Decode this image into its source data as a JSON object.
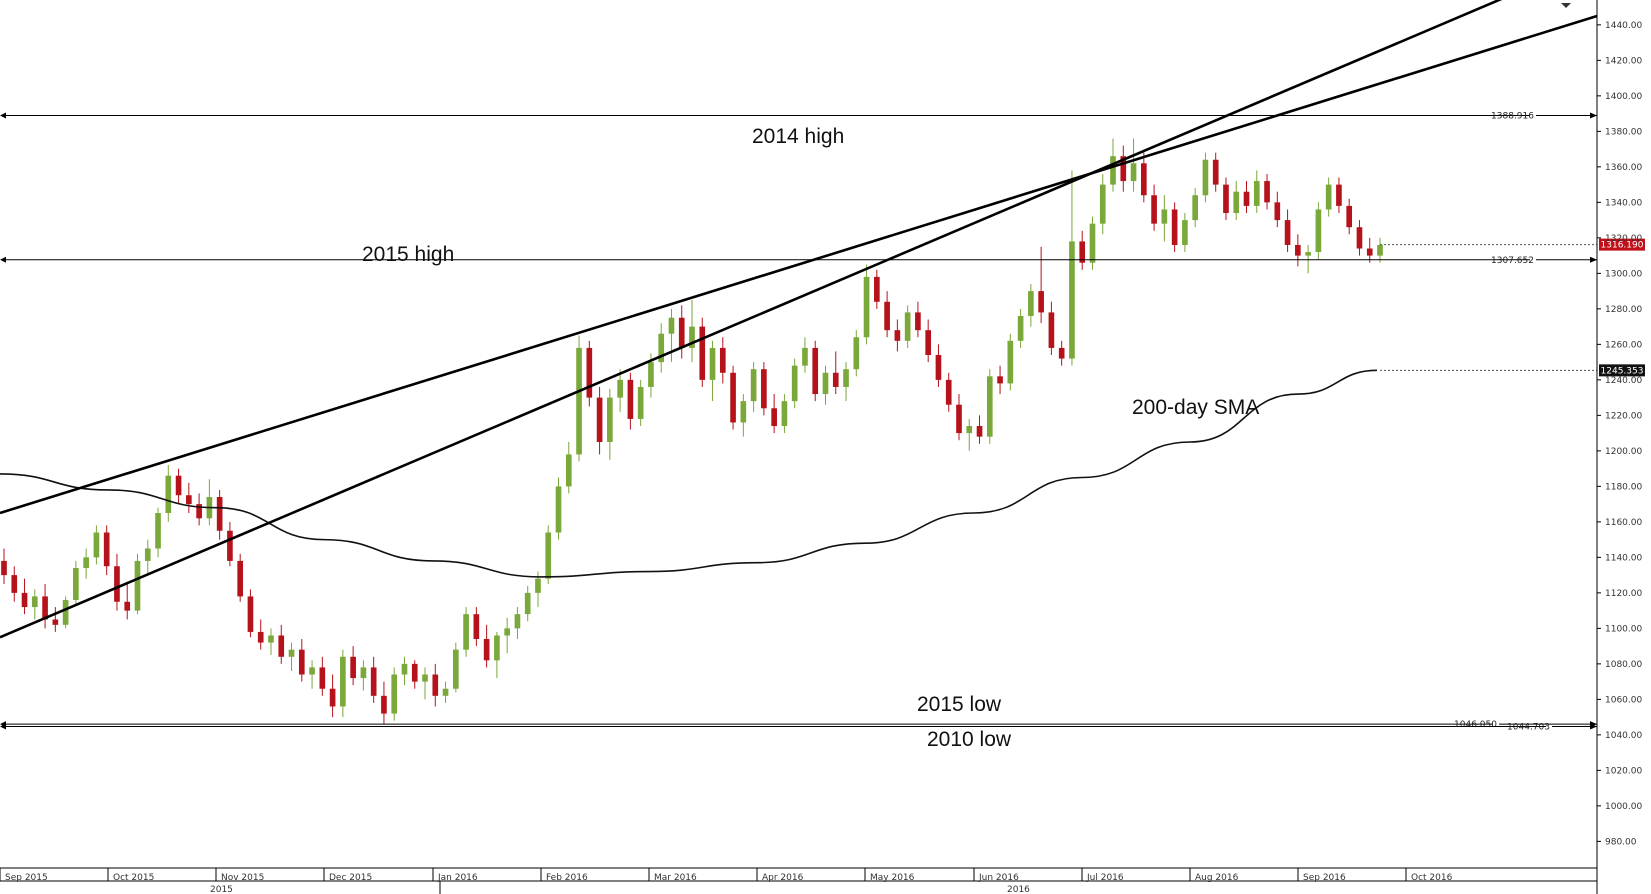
{
  "chart_data": {
    "type": "candlestick",
    "y_axis": {
      "min": 965,
      "max": 1454,
      "ticks": [
        980,
        1000,
        1020,
        1040,
        1060,
        1080,
        1100,
        1120,
        1140,
        1160,
        1180,
        1200,
        1220,
        1240,
        1260,
        1280,
        1300,
        1320,
        1340,
        1360,
        1380,
        1400,
        1420,
        1440
      ],
      "tick_labels": [
        "980.00",
        "1000.00",
        "1020.00",
        "1040.00",
        "1060.00",
        "1080.00",
        "1100.00",
        "1120.00",
        "1140.00",
        "1160.00",
        "1180.00",
        "1200.00",
        "1220.00",
        "1240.00",
        "1260.00",
        "1280.00",
        "1300.00",
        "1320.00",
        "1340.00",
        "1360.00",
        "1380.00",
        "1400.00",
        "1420.00",
        "1440.00"
      ],
      "side": "right"
    },
    "x_axis": {
      "months": [
        "Sep 2015",
        "Oct 2015",
        "Nov 2015",
        "Dec 2015",
        "Jan 2016",
        "Feb 2016",
        "Mar 2016",
        "Apr 2016",
        "May 2016",
        "Jun 2016",
        "Jul 2016",
        "Aug 2016",
        "Sep 2016",
        "Oct 2016"
      ],
      "years": [
        "2015",
        "2016"
      ],
      "grid": false
    },
    "horizontal_levels": [
      {
        "value": 1388.916,
        "label": "1388.916",
        "annotation": "2014 high"
      },
      {
        "value": 1307.652,
        "label": "1307.652",
        "annotation": "2015 high"
      },
      {
        "value": 1046.05,
        "label": "1046.050",
        "annotation": "2015 low"
      },
      {
        "value": 1044.703,
        "label": "1044.703",
        "annotation": "2010 low"
      }
    ],
    "price_tags": [
      {
        "value": 1316.19,
        "label": "1316.190",
        "color": "#c0101a"
      },
      {
        "value": 1245.353,
        "label": "1245.353",
        "color": "#111111"
      }
    ],
    "moving_average": {
      "annotation": "200-day SMA",
      "points": [
        [
          "Sep 2015",
          1187
        ],
        [
          "Oct 2015",
          1178
        ],
        [
          "Nov 2015",
          1168
        ],
        [
          "Dec 2015",
          1150
        ],
        [
          "Jan 2016",
          1138
        ],
        [
          "Feb 2016",
          1129
        ],
        [
          "Mar 2016",
          1132
        ],
        [
          "Apr 2016",
          1137
        ],
        [
          "May 2016",
          1148
        ],
        [
          "Jun 2016",
          1165
        ],
        [
          "Jul 2016",
          1185
        ],
        [
          "Aug 2016",
          1205
        ],
        [
          "Sep 2016",
          1232
        ],
        [
          "Sep 2016 end",
          1245.353
        ]
      ]
    },
    "trendlines": [
      {
        "from": [
          "Sep 2015",
          1165
        ],
        "to": [
          "Oct 2016 end",
          1445
        ]
      },
      {
        "from": [
          "Sep 2015",
          1095
        ],
        "to": [
          "Aug 2016",
          1380
        ]
      }
    ],
    "candles": [
      {
        "o": 1138,
        "h": 1145,
        "l": 1125,
        "c": 1130
      },
      {
        "o": 1130,
        "h": 1135,
        "l": 1115,
        "c": 1120
      },
      {
        "o": 1120,
        "h": 1128,
        "l": 1108,
        "c": 1112
      },
      {
        "o": 1112,
        "h": 1122,
        "l": 1105,
        "c": 1118
      },
      {
        "o": 1118,
        "h": 1125,
        "l": 1100,
        "c": 1105
      },
      {
        "o": 1105,
        "h": 1112,
        "l": 1098,
        "c": 1102
      },
      {
        "o": 1102,
        "h": 1118,
        "l": 1100,
        "c": 1116
      },
      {
        "o": 1116,
        "h": 1138,
        "l": 1114,
        "c": 1134
      },
      {
        "o": 1134,
        "h": 1145,
        "l": 1128,
        "c": 1140
      },
      {
        "o": 1140,
        "h": 1158,
        "l": 1136,
        "c": 1154
      },
      {
        "o": 1154,
        "h": 1158,
        "l": 1130,
        "c": 1135
      },
      {
        "o": 1135,
        "h": 1142,
        "l": 1110,
        "c": 1115
      },
      {
        "o": 1115,
        "h": 1125,
        "l": 1105,
        "c": 1110
      },
      {
        "o": 1110,
        "h": 1142,
        "l": 1108,
        "c": 1138
      },
      {
        "o": 1138,
        "h": 1150,
        "l": 1130,
        "c": 1145
      },
      {
        "o": 1145,
        "h": 1168,
        "l": 1140,
        "c": 1165
      },
      {
        "o": 1165,
        "h": 1192,
        "l": 1160,
        "c": 1186
      },
      {
        "o": 1186,
        "h": 1190,
        "l": 1170,
        "c": 1175
      },
      {
        "o": 1175,
        "h": 1182,
        "l": 1165,
        "c": 1170
      },
      {
        "o": 1170,
        "h": 1176,
        "l": 1158,
        "c": 1162
      },
      {
        "o": 1162,
        "h": 1184,
        "l": 1158,
        "c": 1174
      },
      {
        "o": 1174,
        "h": 1178,
        "l": 1150,
        "c": 1155
      },
      {
        "o": 1155,
        "h": 1160,
        "l": 1135,
        "c": 1138
      },
      {
        "o": 1138,
        "h": 1142,
        "l": 1115,
        "c": 1118
      },
      {
        "o": 1118,
        "h": 1122,
        "l": 1095,
        "c": 1098
      },
      {
        "o": 1098,
        "h": 1105,
        "l": 1088,
        "c": 1092
      },
      {
        "o": 1092,
        "h": 1100,
        "l": 1085,
        "c": 1096
      },
      {
        "o": 1096,
        "h": 1102,
        "l": 1080,
        "c": 1084
      },
      {
        "o": 1084,
        "h": 1092,
        "l": 1076,
        "c": 1088
      },
      {
        "o": 1088,
        "h": 1094,
        "l": 1070,
        "c": 1074
      },
      {
        "o": 1074,
        "h": 1082,
        "l": 1066,
        "c": 1078
      },
      {
        "o": 1078,
        "h": 1084,
        "l": 1062,
        "c": 1066
      },
      {
        "o": 1066,
        "h": 1074,
        "l": 1050,
        "c": 1056
      },
      {
        "o": 1056,
        "h": 1088,
        "l": 1050,
        "c": 1084
      },
      {
        "o": 1084,
        "h": 1090,
        "l": 1068,
        "c": 1072
      },
      {
        "o": 1072,
        "h": 1082,
        "l": 1065,
        "c": 1078
      },
      {
        "o": 1078,
        "h": 1084,
        "l": 1058,
        "c": 1062
      },
      {
        "o": 1062,
        "h": 1070,
        "l": 1046,
        "c": 1052
      },
      {
        "o": 1052,
        "h": 1078,
        "l": 1048,
        "c": 1074
      },
      {
        "o": 1074,
        "h": 1084,
        "l": 1068,
        "c": 1080
      },
      {
        "o": 1080,
        "h": 1082,
        "l": 1066,
        "c": 1070
      },
      {
        "o": 1070,
        "h": 1078,
        "l": 1060,
        "c": 1074
      },
      {
        "o": 1074,
        "h": 1080,
        "l": 1056,
        "c": 1062
      },
      {
        "o": 1062,
        "h": 1070,
        "l": 1058,
        "c": 1066
      },
      {
        "o": 1066,
        "h": 1092,
        "l": 1064,
        "c": 1088
      },
      {
        "o": 1088,
        "h": 1112,
        "l": 1084,
        "c": 1108
      },
      {
        "o": 1108,
        "h": 1112,
        "l": 1090,
        "c": 1094
      },
      {
        "o": 1094,
        "h": 1102,
        "l": 1078,
        "c": 1082
      },
      {
        "o": 1082,
        "h": 1098,
        "l": 1072,
        "c": 1096
      },
      {
        "o": 1096,
        "h": 1106,
        "l": 1086,
        "c": 1100
      },
      {
        "o": 1100,
        "h": 1112,
        "l": 1094,
        "c": 1108
      },
      {
        "o": 1108,
        "h": 1124,
        "l": 1104,
        "c": 1120
      },
      {
        "o": 1120,
        "h": 1132,
        "l": 1112,
        "c": 1128
      },
      {
        "o": 1128,
        "h": 1158,
        "l": 1125,
        "c": 1154
      },
      {
        "o": 1154,
        "h": 1185,
        "l": 1150,
        "c": 1180
      },
      {
        "o": 1180,
        "h": 1205,
        "l": 1176,
        "c": 1198
      },
      {
        "o": 1198,
        "h": 1265,
        "l": 1194,
        "c": 1258
      },
      {
        "o": 1258,
        "h": 1262,
        "l": 1225,
        "c": 1230
      },
      {
        "o": 1230,
        "h": 1236,
        "l": 1198,
        "c": 1205
      },
      {
        "o": 1205,
        "h": 1235,
        "l": 1195,
        "c": 1230
      },
      {
        "o": 1230,
        "h": 1246,
        "l": 1222,
        "c": 1240
      },
      {
        "o": 1240,
        "h": 1244,
        "l": 1212,
        "c": 1218
      },
      {
        "o": 1218,
        "h": 1240,
        "l": 1214,
        "c": 1236
      },
      {
        "o": 1236,
        "h": 1255,
        "l": 1230,
        "c": 1250
      },
      {
        "o": 1250,
        "h": 1272,
        "l": 1244,
        "c": 1266
      },
      {
        "o": 1266,
        "h": 1280,
        "l": 1250,
        "c": 1275
      },
      {
        "o": 1275,
        "h": 1282,
        "l": 1252,
        "c": 1258
      },
      {
        "o": 1258,
        "h": 1285,
        "l": 1250,
        "c": 1270
      },
      {
        "o": 1270,
        "h": 1275,
        "l": 1236,
        "c": 1240
      },
      {
        "o": 1240,
        "h": 1262,
        "l": 1228,
        "c": 1258
      },
      {
        "o": 1258,
        "h": 1264,
        "l": 1238,
        "c": 1244
      },
      {
        "o": 1244,
        "h": 1248,
        "l": 1212,
        "c": 1216
      },
      {
        "o": 1216,
        "h": 1232,
        "l": 1208,
        "c": 1228
      },
      {
        "o": 1228,
        "h": 1250,
        "l": 1222,
        "c": 1246
      },
      {
        "o": 1246,
        "h": 1250,
        "l": 1220,
        "c": 1224
      },
      {
        "o": 1224,
        "h": 1232,
        "l": 1210,
        "c": 1214
      },
      {
        "o": 1214,
        "h": 1232,
        "l": 1210,
        "c": 1228
      },
      {
        "o": 1228,
        "h": 1252,
        "l": 1224,
        "c": 1248
      },
      {
        "o": 1248,
        "h": 1264,
        "l": 1244,
        "c": 1258
      },
      {
        "o": 1258,
        "h": 1262,
        "l": 1228,
        "c": 1232
      },
      {
        "o": 1232,
        "h": 1248,
        "l": 1226,
        "c": 1244
      },
      {
        "o": 1244,
        "h": 1256,
        "l": 1232,
        "c": 1236
      },
      {
        "o": 1236,
        "h": 1250,
        "l": 1228,
        "c": 1246
      },
      {
        "o": 1246,
        "h": 1268,
        "l": 1242,
        "c": 1264
      },
      {
        "o": 1264,
        "h": 1305,
        "l": 1260,
        "c": 1298
      },
      {
        "o": 1298,
        "h": 1302,
        "l": 1280,
        "c": 1284
      },
      {
        "o": 1284,
        "h": 1290,
        "l": 1264,
        "c": 1268
      },
      {
        "o": 1268,
        "h": 1274,
        "l": 1256,
        "c": 1262
      },
      {
        "o": 1262,
        "h": 1282,
        "l": 1258,
        "c": 1278
      },
      {
        "o": 1278,
        "h": 1284,
        "l": 1264,
        "c": 1268
      },
      {
        "o": 1268,
        "h": 1274,
        "l": 1250,
        "c": 1254
      },
      {
        "o": 1254,
        "h": 1260,
        "l": 1236,
        "c": 1240
      },
      {
        "o": 1240,
        "h": 1244,
        "l": 1222,
        "c": 1226
      },
      {
        "o": 1226,
        "h": 1232,
        "l": 1206,
        "c": 1210
      },
      {
        "o": 1210,
        "h": 1218,
        "l": 1200,
        "c": 1214
      },
      {
        "o": 1214,
        "h": 1220,
        "l": 1204,
        "c": 1208
      },
      {
        "o": 1208,
        "h": 1246,
        "l": 1204,
        "c": 1242
      },
      {
        "o": 1242,
        "h": 1248,
        "l": 1232,
        "c": 1238
      },
      {
        "o": 1238,
        "h": 1266,
        "l": 1234,
        "c": 1262
      },
      {
        "o": 1262,
        "h": 1280,
        "l": 1258,
        "c": 1276
      },
      {
        "o": 1276,
        "h": 1294,
        "l": 1270,
        "c": 1290
      },
      {
        "o": 1290,
        "h": 1315,
        "l": 1272,
        "c": 1278
      },
      {
        "o": 1278,
        "h": 1284,
        "l": 1254,
        "c": 1258
      },
      {
        "o": 1258,
        "h": 1262,
        "l": 1248,
        "c": 1252
      },
      {
        "o": 1252,
        "h": 1358,
        "l": 1248,
        "c": 1318
      },
      {
        "o": 1318,
        "h": 1324,
        "l": 1302,
        "c": 1306
      },
      {
        "o": 1306,
        "h": 1332,
        "l": 1302,
        "c": 1328
      },
      {
        "o": 1328,
        "h": 1356,
        "l": 1322,
        "c": 1350
      },
      {
        "o": 1350,
        "h": 1376,
        "l": 1346,
        "c": 1366
      },
      {
        "o": 1366,
        "h": 1372,
        "l": 1346,
        "c": 1352
      },
      {
        "o": 1352,
        "h": 1376,
        "l": 1346,
        "c": 1362
      },
      {
        "o": 1362,
        "h": 1368,
        "l": 1340,
        "c": 1344
      },
      {
        "o": 1344,
        "h": 1350,
        "l": 1324,
        "c": 1328
      },
      {
        "o": 1328,
        "h": 1344,
        "l": 1318,
        "c": 1336
      },
      {
        "o": 1336,
        "h": 1340,
        "l": 1312,
        "c": 1316
      },
      {
        "o": 1316,
        "h": 1334,
        "l": 1312,
        "c": 1330
      },
      {
        "o": 1330,
        "h": 1348,
        "l": 1326,
        "c": 1344
      },
      {
        "o": 1344,
        "h": 1368,
        "l": 1340,
        "c": 1364
      },
      {
        "o": 1364,
        "h": 1368,
        "l": 1346,
        "c": 1350
      },
      {
        "o": 1350,
        "h": 1354,
        "l": 1330,
        "c": 1334
      },
      {
        "o": 1334,
        "h": 1352,
        "l": 1330,
        "c": 1346
      },
      {
        "o": 1346,
        "h": 1352,
        "l": 1334,
        "c": 1338
      },
      {
        "o": 1338,
        "h": 1358,
        "l": 1334,
        "c": 1352
      },
      {
        "o": 1352,
        "h": 1356,
        "l": 1336,
        "c": 1340
      },
      {
        "o": 1340,
        "h": 1346,
        "l": 1326,
        "c": 1330
      },
      {
        "o": 1330,
        "h": 1336,
        "l": 1312,
        "c": 1316
      },
      {
        "o": 1316,
        "h": 1322,
        "l": 1304,
        "c": 1310
      },
      {
        "o": 1310,
        "h": 1316,
        "l": 1300,
        "c": 1312
      },
      {
        "o": 1312,
        "h": 1340,
        "l": 1308,
        "c": 1336
      },
      {
        "o": 1336,
        "h": 1354,
        "l": 1332,
        "c": 1350
      },
      {
        "o": 1350,
        "h": 1354,
        "l": 1334,
        "c": 1338
      },
      {
        "o": 1338,
        "h": 1342,
        "l": 1322,
        "c": 1326
      },
      {
        "o": 1326,
        "h": 1330,
        "l": 1310,
        "c": 1314
      },
      {
        "o": 1314,
        "h": 1320,
        "l": 1306,
        "c": 1310
      },
      {
        "o": 1310,
        "h": 1320,
        "l": 1306,
        "c": 1316
      }
    ]
  }
}
